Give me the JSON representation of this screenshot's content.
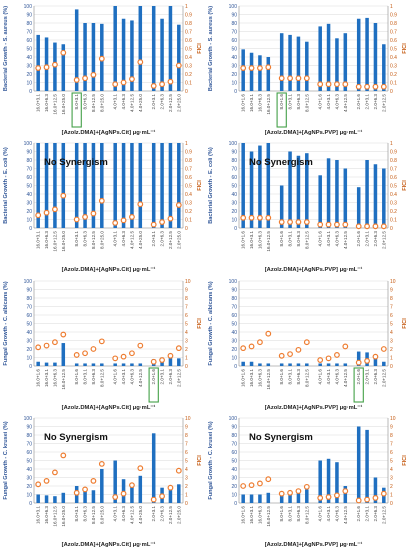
{
  "colors": {
    "bar": "#1f6fc0",
    "marker": "#ee7d31",
    "marker_fill": "#ffffff",
    "synergy_box": "#43a047",
    "left_axis_text": "#2f5597",
    "right_axis_text": "#c55a11",
    "grid": "#d9d9d9",
    "axis": "#8c8c8c"
  },
  "chart_data": [
    {
      "type": "bar+scatter",
      "panel": "top-left",
      "ylabel": "Bacterial Growth - S. aureus (%)",
      "y2label": "FICI",
      "xlabel": "[Azolz.DMA]+[AgNPs.Cit] μg·mL⁻¹",
      "ylim": [
        0,
        100
      ],
      "y2lim": [
        0,
        1
      ],
      "yticks": [
        "0",
        "10",
        "20",
        "30",
        "40",
        "50",
        "60",
        "70",
        "80",
        "90",
        "100"
      ],
      "y2ticks": [
        "0",
        "0.1",
        "0.2",
        "0.3",
        "0.4",
        "0.5",
        "0.6",
        "0.7",
        "0.8",
        "0.9",
        "1"
      ],
      "categories": [
        "16.0+3.1",
        "16.0+6.3",
        "16.0+12.5",
        "16.0+25.0",
        "8.0+3.1",
        "8.0+6.3",
        "8.0+12.5",
        "8.0+25.0",
        "4.0+3.1",
        "4.0+6.3",
        "4.0+12.5",
        "4.0+25.0",
        "2.0+3.1",
        "2.0+6.3",
        "2.0+12.5",
        "2.0+25.0"
      ],
      "groups": [
        4,
        4,
        4,
        4
      ],
      "bars": [
        66,
        63,
        57,
        55,
        96,
        80,
        80,
        79,
        100,
        85,
        83,
        100,
        100,
        85,
        100,
        78
      ],
      "fici": [
        0.27,
        0.28,
        0.31,
        0.45,
        0.13,
        0.15,
        0.19,
        0.38,
        0.08,
        0.1,
        0.14,
        0.34,
        0.06,
        0.08,
        0.11,
        0.3
      ],
      "title_note": "",
      "synergy_box_index": 4
    },
    {
      "type": "bar+scatter",
      "panel": "top-right",
      "ylabel": "Bacterial Growth - S. aureus (%)",
      "y2label": "FICI",
      "xlabel": "[Azolz.DMA]+[AgNPs.PVP] μg·mL⁻¹",
      "ylim": [
        0,
        100
      ],
      "y2lim": [
        0,
        1
      ],
      "yticks": [
        "0",
        "10",
        "20",
        "30",
        "40",
        "50",
        "60",
        "70",
        "80",
        "90",
        "100"
      ],
      "y2ticks": [
        "0",
        "0.1",
        "0.2",
        "0.3",
        "0.4",
        "0.5",
        "0.6",
        "0.7",
        "0.8",
        "0.9",
        "1"
      ],
      "categories": [
        "16.0+1.6",
        "16.0+3.1",
        "16.0+6.3",
        "16.0+12.5",
        "8.0+1.6",
        "8.0+3.1",
        "8.0+6.3",
        "8.0+12.5",
        "4.0+1.6",
        "4.0+3.1",
        "4.0+6.3",
        "4.0+12.5",
        "2.0+1.6",
        "2.0+3.1",
        "2.0+6.3",
        "2.0+12.5"
      ],
      "groups": [
        4,
        4,
        4,
        4
      ],
      "bars": [
        49,
        45,
        42,
        40,
        68,
        66,
        64,
        58,
        76,
        79,
        62,
        68,
        85,
        86,
        80,
        55
      ],
      "fici": [
        0.27,
        0.27,
        0.27,
        0.28,
        0.15,
        0.15,
        0.15,
        0.15,
        0.08,
        0.08,
        0.08,
        0.08,
        0.05,
        0.05,
        0.05,
        0.05
      ],
      "title_note": "",
      "synergy_box_index": 4
    },
    {
      "type": "bar+scatter",
      "panel": "row2-left",
      "ylabel": "Bacterial Growth - E. coli (%)",
      "y2label": "FICI",
      "xlabel": "[Azolz.DMA]+[AgNPs.Cit] μg·mL⁻¹",
      "ylim": [
        0,
        100
      ],
      "y2lim": [
        0,
        1
      ],
      "yticks": [
        "0",
        "10",
        "20",
        "30",
        "40",
        "50",
        "60",
        "70",
        "80",
        "90",
        "100"
      ],
      "y2ticks": [
        "0",
        "0.1",
        "0.2",
        "0.3",
        "0.4",
        "0.5",
        "0.6",
        "0.7",
        "0.8",
        "0.9",
        "1"
      ],
      "categories": [
        "16.0+3.1",
        "16.0+6.3",
        "16.0+12.5",
        "16.0+25.0",
        "8.0+3.1",
        "8.0+6.3",
        "8.0+12.5",
        "8.0+25.0",
        "4.0+3.1",
        "4.0+6.3",
        "4.0+12.5",
        "4.0+25.0",
        "2.0+3.1",
        "2.0+6.3",
        "2.0+12.5",
        "2.0+25.0"
      ],
      "groups": [
        4,
        4,
        4,
        4
      ],
      "bars": [
        100,
        100,
        100,
        100,
        100,
        100,
        100,
        100,
        100,
        100,
        100,
        100,
        100,
        100,
        100,
        100
      ],
      "fici": [
        0.15,
        0.18,
        0.22,
        0.38,
        0.1,
        0.13,
        0.17,
        0.32,
        0.06,
        0.09,
        0.13,
        0.28,
        0.04,
        0.07,
        0.11,
        0.27
      ],
      "title_note": "No Synergism",
      "synergy_box_index": null
    },
    {
      "type": "bar+scatter",
      "panel": "row2-right",
      "ylabel": "Bacterial Growth - E. coli (%)",
      "y2label": "FICI",
      "xlabel": "[Azolz.DMA]+[AgNPs.PVP] μg·mL⁻¹",
      "ylim": [
        0,
        100
      ],
      "y2lim": [
        0,
        1
      ],
      "yticks": [
        "0",
        "10",
        "20",
        "30",
        "40",
        "50",
        "60",
        "70",
        "80",
        "90",
        "100"
      ],
      "y2ticks": [
        "0",
        "0.1",
        "0.2",
        "0.3",
        "0.4",
        "0.5",
        "0.6",
        "0.7",
        "0.8",
        "0.9",
        "1"
      ],
      "categories": [
        "16.0+1.6",
        "16.0+3.1",
        "16.0+6.3",
        "16.0+12.5",
        "8.0+1.6",
        "8.0+3.1",
        "8.0+6.3",
        "8.0+12.5",
        "4.0+1.6",
        "4.0+3.1",
        "4.0+6.3",
        "4.0+12.5",
        "2.0+1.6",
        "2.0+3.1",
        "2.0+6.3",
        "2.0+12.5"
      ],
      "groups": [
        4,
        4,
        4,
        4
      ],
      "bars": [
        100,
        90,
        97,
        100,
        50,
        90,
        85,
        88,
        62,
        82,
        80,
        70,
        48,
        80,
        75,
        70
      ],
      "fici": [
        0.12,
        0.12,
        0.12,
        0.12,
        0.07,
        0.07,
        0.07,
        0.07,
        0.04,
        0.04,
        0.04,
        0.04,
        0.02,
        0.02,
        0.02,
        0.02
      ],
      "title_note": "No Synergism",
      "synergy_box_index": null
    },
    {
      "type": "bar+scatter",
      "panel": "row3-left",
      "ylabel": "Fungal Growth - C. albicans (%)",
      "y2label": "FICI",
      "xlabel": "[Azolz.DMA]+[AgNPs.Cit] μg·mL⁻¹",
      "ylim": [
        0,
        100
      ],
      "y2lim": [
        0,
        10
      ],
      "yticks": [
        "0",
        "10",
        "20",
        "30",
        "40",
        "50",
        "60",
        "70",
        "80",
        "90",
        "100"
      ],
      "y2ticks": [
        "0",
        "1",
        "2",
        "3",
        "4",
        "5",
        "6",
        "7",
        "8",
        "9",
        "10"
      ],
      "categories": [
        "16.0+1.6",
        "16.0+3.1",
        "16.0+6.3",
        "16.0+12.5",
        "8.0+1.6",
        "8.0+3.1",
        "8.0+6.3",
        "8.0+12.5",
        "4.0+1.6",
        "4.0+3.1",
        "4.0+6.3",
        "4.0+12.5",
        "2.0+1.6",
        "2.0+3.1",
        "2.0+6.3",
        "2.0+12.5"
      ],
      "groups": [
        4,
        4,
        4,
        4
      ],
      "bars": [
        5,
        4,
        4,
        27,
        3,
        3,
        3,
        3,
        3,
        3,
        3,
        3,
        8,
        10,
        14,
        9
      ],
      "fici": [
        2.2,
        2.4,
        2.8,
        3.7,
        1.3,
        1.5,
        2.0,
        2.9,
        0.9,
        1.1,
        1.5,
        2.4,
        0.5,
        0.7,
        1.2,
        2.1
      ],
      "title_note": "",
      "synergy_box_index": 12
    },
    {
      "type": "bar+scatter",
      "panel": "row3-right",
      "ylabel": "Fungal Growth - C. albicans (%)",
      "y2label": "FICI",
      "xlabel": "[Azolz.DMA]+[AgNPs.PVP] μg·mL⁻¹",
      "ylim": [
        0,
        100
      ],
      "y2lim": [
        0,
        10
      ],
      "yticks": [
        "0",
        "10",
        "20",
        "30",
        "40",
        "50",
        "60",
        "70",
        "80",
        "90",
        "100"
      ],
      "y2ticks": [
        "0",
        "1",
        "2",
        "3",
        "4",
        "5",
        "6",
        "7",
        "8",
        "9",
        "10"
      ],
      "categories": [
        "16.0+1.6",
        "16.0+3.1",
        "16.0+6.3",
        "16.0+12.5",
        "8.0+1.6",
        "8.0+3.1",
        "8.0+6.3",
        "8.0+12.5",
        "4.0+1.6",
        "4.0+3.1",
        "4.0+6.3",
        "4.0+12.5",
        "2.0+1.6",
        "2.0+3.1",
        "2.0+6.3",
        "2.0+12.5"
      ],
      "groups": [
        4,
        4,
        4,
        4
      ],
      "bars": [
        5,
        5,
        3,
        3,
        3,
        3,
        3,
        3,
        3,
        3,
        3,
        3,
        17,
        16,
        13,
        5
      ],
      "fici": [
        2.1,
        2.3,
        2.8,
        3.8,
        1.2,
        1.4,
        1.9,
        2.8,
        0.7,
        0.9,
        1.3,
        2.3,
        0.4,
        0.6,
        1.1,
        2.0
      ],
      "title_note": "",
      "synergy_box_index": 12
    },
    {
      "type": "bar+scatter",
      "panel": "bottom-left",
      "ylabel": "Fungal Growth - C. krusei (%)",
      "y2label": "FICI",
      "xlabel": "[Azolz.DMA]+[AgNPs.Cit] μg·mL⁻¹",
      "ylim": [
        0,
        100
      ],
      "y2lim": [
        0,
        10
      ],
      "yticks": [
        "0",
        "10",
        "20",
        "30",
        "40",
        "50",
        "60",
        "70",
        "80",
        "90",
        "100"
      ],
      "y2ticks": [
        "0",
        "1",
        "2",
        "3",
        "4",
        "5",
        "6",
        "7",
        "8",
        "9",
        "10"
      ],
      "categories": [
        "16.0+3.1",
        "16.0+6.3",
        "16.0+12.5",
        "16.0+25.0",
        "8.0+3.1",
        "8.0+6.3",
        "8.0+12.5",
        "8.0+25.0",
        "4.0+3.1",
        "4.0+6.3",
        "4.0+12.5",
        "4.0+25.0",
        "2.0+3.1",
        "2.0+6.3",
        "2.0+12.5",
        "2.0+25.0"
      ],
      "groups": [
        4,
        4,
        4,
        4
      ],
      "bars": [
        10,
        9,
        8,
        12,
        20,
        18,
        15,
        40,
        50,
        28,
        22,
        32,
        82,
        18,
        20,
        22
      ],
      "fici": [
        2.2,
        2.6,
        3.6,
        5.6,
        1.2,
        1.6,
        2.6,
        4.6,
        0.7,
        1.1,
        2.1,
        4.1,
        0.4,
        0.8,
        1.8,
        3.8
      ],
      "title_note": "No Synergism",
      "synergy_box_index": null
    },
    {
      "type": "bar+scatter",
      "panel": "bottom-right",
      "ylabel": "Fungal Growth - C. krusei (%)",
      "y2label": "FICI",
      "xlabel": "[Azolz.DMA]+[AgNPs.PVP] μg·mL⁻¹",
      "ylim": [
        0,
        100
      ],
      "y2lim": [
        0,
        10
      ],
      "yticks": [
        "0",
        "10",
        "20",
        "30",
        "40",
        "50",
        "60",
        "70",
        "80",
        "90",
        "100"
      ],
      "y2ticks": [
        "0",
        "1",
        "2",
        "3",
        "4",
        "5",
        "6",
        "7",
        "8",
        "9",
        "10"
      ],
      "categories": [
        "16.0+1.6",
        "16.0+3.1",
        "16.0+6.3",
        "16.0+12.5",
        "8.0+1.6",
        "8.0+3.1",
        "8.0+6.3",
        "8.0+12.5",
        "4.0+1.6",
        "4.0+3.1",
        "4.0+6.3",
        "4.0+12.5",
        "2.0+1.6",
        "2.0+3.1",
        "2.0+6.3",
        "2.0+12.5"
      ],
      "groups": [
        4,
        4,
        4,
        4
      ],
      "bars": [
        10,
        10,
        10,
        12,
        12,
        12,
        14,
        16,
        50,
        52,
        48,
        20,
        90,
        86,
        30,
        18
      ],
      "fici": [
        2.0,
        2.1,
        2.3,
        2.8,
        1.1,
        1.2,
        1.4,
        1.9,
        0.6,
        0.7,
        0.9,
        1.4,
        0.3,
        0.4,
        0.6,
        1.1
      ],
      "title_note": "No Synergism",
      "synergy_box_index": null
    }
  ]
}
